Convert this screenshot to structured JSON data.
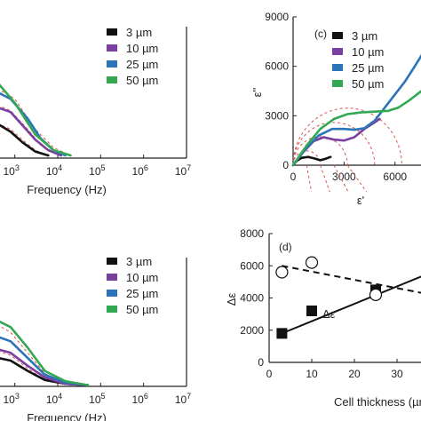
{
  "chart_data": [
    {
      "id": "top_left",
      "type": "line",
      "xlabel": "Frequency (Hz)",
      "xscale": "log",
      "xlim": [
        10,
        10000000
      ],
      "x_tick_labels": [
        {
          "exp": "3",
          "value": 1000
        },
        {
          "exp": "4",
          "value": 10000
        },
        {
          "exp": "5",
          "value": 100000
        },
        {
          "exp": "6",
          "value": 1000000
        },
        {
          "exp": "7",
          "value": 10000000
        }
      ],
      "legend": [
        "3 µm",
        "10 µm",
        "25 µm",
        "50 µm"
      ],
      "series": [
        {
          "name": "3 µm",
          "color": "#111111",
          "x": [
            30,
            100,
            200,
            400,
            800,
            1500,
            3000,
            6000
          ],
          "y": [
            0.2,
            0.24,
            0.27,
            0.26,
            0.2,
            0.12,
            0.05,
            0.02
          ]
        },
        {
          "name": "10 µm",
          "color": "#7b3fa0",
          "x": [
            30,
            100,
            300,
            800,
            1500,
            3000,
            6000,
            12000
          ],
          "y": [
            0.28,
            0.34,
            0.4,
            0.35,
            0.25,
            0.14,
            0.06,
            0.02
          ]
        },
        {
          "name": "25 µm",
          "color": "#2c73b8",
          "x": [
            30,
            100,
            300,
            800,
            2000,
            4000,
            8000,
            15000
          ],
          "y": [
            0.4,
            0.48,
            0.52,
            0.45,
            0.3,
            0.15,
            0.06,
            0.02
          ]
        },
        {
          "name": "50 µm",
          "color": "#33a852",
          "x": [
            10,
            40,
            100,
            300,
            1000,
            3000,
            8000,
            20000
          ],
          "y": [
            0.82,
            0.8,
            0.74,
            0.62,
            0.42,
            0.18,
            0.06,
            0.02
          ]
        }
      ],
      "fit_curves": [
        {
          "x": [
            100,
            300,
            800,
            1500,
            3000,
            6000
          ],
          "y": [
            0.24,
            0.28,
            0.22,
            0.14,
            0.06,
            0.02
          ]
        },
        {
          "x": [
            300,
            800,
            2000,
            4000,
            10000
          ],
          "y": [
            0.42,
            0.36,
            0.22,
            0.1,
            0.03
          ]
        },
        {
          "x": [
            300,
            1000,
            3000,
            8000,
            20000
          ],
          "y": [
            0.55,
            0.45,
            0.22,
            0.08,
            0.02
          ]
        }
      ]
    },
    {
      "id": "top_right",
      "type": "line",
      "panel_label": "(c)",
      "xlabel": "ε'",
      "ylabel": "ε''",
      "xlim": [
        0,
        8000
      ],
      "ylim": [
        0,
        9000
      ],
      "x_ticks": [
        "0",
        "3000",
        "6000"
      ],
      "x_tick_values": [
        0,
        3000,
        6000
      ],
      "y_ticks": [
        "0",
        "3000",
        "6000",
        "9000"
      ],
      "y_tick_values": [
        0,
        3000,
        6000,
        9000
      ],
      "legend": [
        "3 µm",
        "10 µm",
        "25 µm",
        "50 µm"
      ],
      "series": [
        {
          "name": "3 µm",
          "color": "#111111",
          "x": [
            0,
            200,
            500,
            900,
            1300,
            1600,
            1900,
            2200
          ],
          "y": [
            0,
            250,
            450,
            500,
            400,
            300,
            380,
            500
          ]
        },
        {
          "name": "10 µm",
          "color": "#7b3fa0",
          "x": [
            0,
            600,
            1200,
            1800,
            2400,
            3000,
            3600,
            4200,
            4800,
            5100
          ],
          "y": [
            0,
            800,
            1450,
            1700,
            1550,
            1500,
            1700,
            2200,
            2600,
            2800
          ]
        },
        {
          "name": "25 µm",
          "color": "#2c73b8",
          "x": [
            0,
            700,
            1500,
            2300,
            3000,
            3600,
            4200,
            4800,
            5400,
            6000,
            6600,
            7100,
            7700
          ],
          "y": [
            0,
            950,
            1800,
            2200,
            2200,
            2150,
            2250,
            2700,
            3500,
            4300,
            5100,
            5900,
            6900
          ]
        },
        {
          "name": "50 µm",
          "color": "#33a852",
          "x": [
            0,
            800,
            1600,
            2400,
            3200,
            4000,
            4800,
            5600,
            6200,
            6800,
            7300,
            7800
          ],
          "y": [
            0,
            1200,
            2200,
            2800,
            3100,
            3200,
            3250,
            3300,
            3500,
            3900,
            4300,
            4700
          ]
        }
      ],
      "fit_arcs": [
        {
          "x0": 0,
          "x1": 1600
        },
        {
          "x0": 0,
          "x1": 3200
        },
        {
          "x0": 0,
          "x1": 4800
        },
        {
          "x0": 0,
          "x1": 6400
        }
      ]
    },
    {
      "id": "bottom_left",
      "type": "line",
      "xlabel": "Frequency (Hz)",
      "xscale": "log",
      "xlim": [
        10,
        10000000
      ],
      "x_tick_labels": [
        {
          "exp": "3",
          "value": 1000
        },
        {
          "exp": "4",
          "value": 10000
        },
        {
          "exp": "5",
          "value": 100000
        },
        {
          "exp": "6",
          "value": 1000000
        },
        {
          "exp": "7",
          "value": 10000000
        }
      ],
      "legend": [
        "3 µm",
        "10 µm",
        "25 µm",
        "50 µm"
      ],
      "series": [
        {
          "name": "3 µm",
          "color": "#111111",
          "x": [
            10,
            40,
            100,
            300,
            800,
            2000,
            5000,
            15000,
            50000
          ],
          "y": [
            0.12,
            0.18,
            0.21,
            0.23,
            0.2,
            0.12,
            0.05,
            0.02,
            0.01
          ]
        },
        {
          "name": "10 µm",
          "color": "#7b3fa0",
          "x": [
            10,
            40,
            100,
            300,
            800,
            2000,
            5000,
            15000,
            50000
          ],
          "y": [
            0.18,
            0.24,
            0.28,
            0.3,
            0.26,
            0.16,
            0.07,
            0.02,
            0.01
          ]
        },
        {
          "name": "25 µm",
          "color": "#2c73b8",
          "x": [
            10,
            40,
            100,
            300,
            800,
            2000,
            5000,
            15000,
            50000
          ],
          "y": [
            0.38,
            0.4,
            0.41,
            0.4,
            0.35,
            0.22,
            0.09,
            0.03,
            0.01
          ]
        },
        {
          "name": "50 µm",
          "color": "#33a852",
          "x": [
            10,
            40,
            100,
            300,
            800,
            2000,
            5000,
            15000,
            50000
          ],
          "y": [
            0.54,
            0.55,
            0.55,
            0.53,
            0.46,
            0.3,
            0.12,
            0.04,
            0.01
          ]
        }
      ],
      "fit_curves": [
        {
          "x": [
            100,
            300,
            800,
            2000,
            5000
          ],
          "y": [
            0.27,
            0.29,
            0.24,
            0.14,
            0.05
          ]
        },
        {
          "x": [
            300,
            800,
            2000,
            5000,
            15000
          ],
          "y": [
            0.5,
            0.42,
            0.26,
            0.1,
            0.03
          ]
        }
      ]
    },
    {
      "id": "bottom_right",
      "type": "scatter",
      "panel_label": "(d)",
      "xlabel": "Cell thickness (µm",
      "ylabel": "Δε",
      "xlim": [
        0,
        50
      ],
      "ylim": [
        0,
        8000
      ],
      "y_ticks": [
        "0",
        "2000",
        "4000",
        "6000",
        "8000"
      ],
      "y_tick_values": [
        0,
        2000,
        4000,
        6000,
        8000
      ],
      "x_ticks": [
        "0",
        "10",
        "20",
        "30"
      ],
      "x_tick_values": [
        0,
        10,
        20,
        30
      ],
      "annotation": "Δε",
      "series": [
        {
          "name": "Δε",
          "marker": "square-filled",
          "x": [
            3,
            10,
            25
          ],
          "y": [
            1800,
            3200,
            4500
          ]
        },
        {
          "name": "",
          "marker": "circle-open",
          "x": [
            3,
            10,
            25
          ],
          "y": [
            5600,
            6200,
            4200
          ]
        }
      ],
      "fit_lines": [
        {
          "style": "solid",
          "x": [
            3,
            40
          ],
          "y": [
            1800,
            5800
          ]
        },
        {
          "style": "dashed",
          "x": [
            3,
            40
          ],
          "y": [
            6000,
            4100
          ]
        }
      ]
    }
  ]
}
